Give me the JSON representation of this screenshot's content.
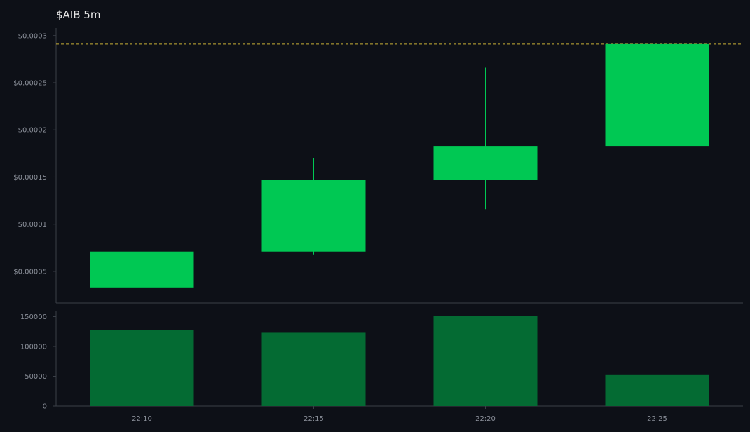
{
  "chart_data": {
    "type": "candlestick",
    "title": "$AIB 5m",
    "x": [
      "22:10",
      "22:15",
      "22:20",
      "22:25"
    ],
    "open": [
      3.3e-05,
      7.1e-05,
      0.000147,
      0.000183
    ],
    "close": [
      7.1e-05,
      0.000147,
      0.000183,
      0.000291
    ],
    "high": [
      9.7e-05,
      0.00017,
      0.000266,
      0.000295
    ],
    "low": [
      2.9e-05,
      6.8e-05,
      0.000116,
      0.000176
    ],
    "volume": [
      128000,
      123000,
      151000,
      52000
    ],
    "last_price": 0.000291,
    "price_axis": {
      "ylim": [
        1.65e-05,
        0.000308
      ],
      "ticks": [
        5e-05,
        0.0001,
        0.00015,
        0.0002,
        0.00025,
        0.0003
      ],
      "tick_labels": [
        "$0.00005",
        "$0.0001",
        "$0.00015",
        "$0.0002",
        "$0.00025",
        "$0.0003"
      ]
    },
    "volume_axis": {
      "ylim": [
        0,
        160000
      ],
      "ticks": [
        0,
        50000,
        100000,
        150000
      ],
      "tick_labels": [
        "0",
        "50000",
        "100000",
        "150000"
      ]
    },
    "grid": false,
    "colors": {
      "background": "#0d1017",
      "up": "#00c853",
      "volume": "#046b33",
      "last_price_line": "#c9b037",
      "axis": "#3a3f47",
      "text": "#8a8f99",
      "title": "#e6e6e6"
    }
  }
}
